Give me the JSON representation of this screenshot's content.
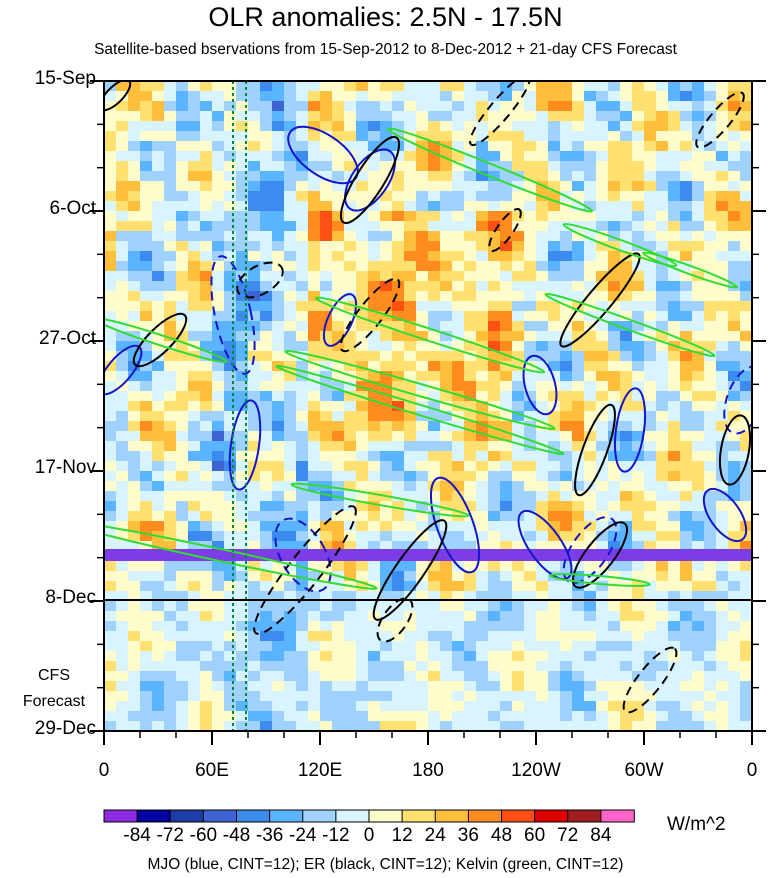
{
  "chart_data": {
    "type": "heatmap",
    "title": "OLR anomalies: 2.5N - 17.5N",
    "subtitle": "Satellite-based bservations from 15-Sep-2012 to 8-Dec-2012 + 21-day CFS Forecast",
    "y_ticks": [
      "15-Sep",
      "6-Oct",
      "27-Oct",
      "17-Nov",
      "8-Dec",
      "29-Dec"
    ],
    "x_ticks": [
      "0",
      "60E",
      "120E",
      "180",
      "120W",
      "60W",
      "0"
    ],
    "forecast_label": [
      "CFS",
      "Forecast"
    ],
    "colorbar": {
      "labels": [
        "-84",
        "-72",
        "-60",
        "-48",
        "-36",
        "-24",
        "-12",
        "0",
        "12",
        "24",
        "36",
        "48",
        "60",
        "72",
        "84"
      ],
      "colors": [
        "#8b2be2",
        "#0000a0",
        "#1e3ca8",
        "#3c64d2",
        "#3c8cf0",
        "#5ab4ff",
        "#a0d2ff",
        "#d8f4ff",
        "#fffccc",
        "#ffe070",
        "#ffbe3c",
        "#ff8c1e",
        "#ff5014",
        "#dc0000",
        "#a01e1e",
        "#ff64c8"
      ],
      "units": "W/m^2"
    },
    "legend_note": "MJO (blue, CINT=12); ER (black, CINT=12); Kelvin (green, CINT=12)",
    "series_colors": {
      "mjo": "#1414c8",
      "er": "#000000",
      "kelvin": "#32dc32",
      "highlight": "#7c3ce6"
    }
  }
}
